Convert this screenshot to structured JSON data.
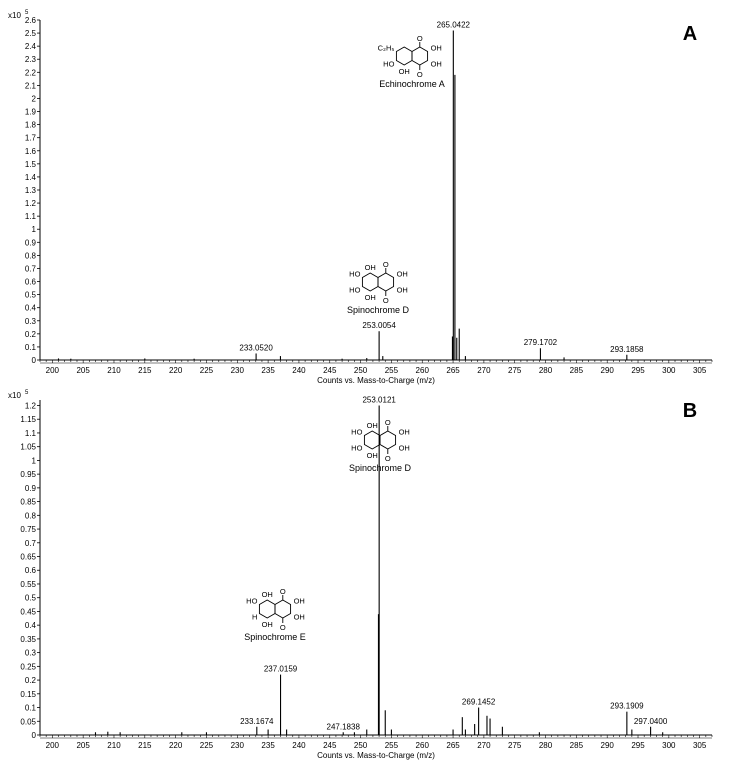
{
  "chart_data": [
    {
      "type": "bar",
      "panel_label": "A",
      "scale_prefix": "x10",
      "scale_exp": "5",
      "xlabel": "Counts vs. Mass-to-Charge (m/z)",
      "xlim": [
        198,
        307
      ],
      "ylim": [
        0,
        2.6
      ],
      "xticks": [
        200,
        205,
        210,
        215,
        220,
        225,
        230,
        235,
        240,
        245,
        250,
        255,
        260,
        265,
        270,
        275,
        280,
        285,
        290,
        295,
        300,
        305
      ],
      "yticks": [
        "0",
        "0.1",
        "0.2",
        "0.3",
        "0.4",
        "0.5",
        "0.6",
        "0.7",
        "0.8",
        "0.9",
        "1",
        "1.1",
        "1.2",
        "1.3",
        "1.4",
        "1.5",
        "1.6",
        "1.7",
        "1.8",
        "1.9",
        "2",
        "2.1",
        "2.2",
        "2.3",
        "2.4",
        "2.5",
        "2.6"
      ],
      "peaks": [
        {
          "x": 201.0,
          "y": 0.012
        },
        {
          "x": 203.0,
          "y": 0.01
        },
        {
          "x": 215.0,
          "y": 0.012
        },
        {
          "x": 223.0,
          "y": 0.01
        },
        {
          "x": 233.052,
          "y": 0.05
        },
        {
          "x": 237.0,
          "y": 0.03
        },
        {
          "x": 247.0,
          "y": 0.01
        },
        {
          "x": 251.0,
          "y": 0.015
        },
        {
          "x": 253.0054,
          "y": 0.22
        },
        {
          "x": 253.6,
          "y": 0.03
        },
        {
          "x": 264.9,
          "y": 0.18
        },
        {
          "x": 265.0422,
          "y": 2.52
        },
        {
          "x": 265.3,
          "y": 2.18
        },
        {
          "x": 265.6,
          "y": 0.17
        },
        {
          "x": 266.0,
          "y": 0.24
        },
        {
          "x": 267.0,
          "y": 0.03
        },
        {
          "x": 279.1702,
          "y": 0.09
        },
        {
          "x": 283.0,
          "y": 0.02
        },
        {
          "x": 293.1858,
          "y": 0.04
        }
      ],
      "peak_labels": [
        {
          "x": 265.0422,
          "y": 2.52,
          "text": "265.0422"
        },
        {
          "x": 253.0054,
          "y": 0.22,
          "text": "253.0054"
        },
        {
          "x": 233.052,
          "y": 0.05,
          "text": "233.0520"
        },
        {
          "x": 279.1702,
          "y": 0.09,
          "text": "279.1702"
        },
        {
          "x": 293.1858,
          "y": 0.04,
          "text": "293.1858"
        }
      ],
      "structures": [
        {
          "name": "Echinochrome A",
          "r1": "C₂H₅",
          "r2": "HO",
          "show_top_oh": false
        },
        {
          "name": "Spinochrome D",
          "r1": "HO",
          "r2": "HO",
          "show_top_oh": true
        }
      ]
    },
    {
      "type": "bar",
      "panel_label": "B",
      "scale_prefix": "x10",
      "scale_exp": "5",
      "xlabel": "Counts vs. Mass-to-Charge (m/z)",
      "xlim": [
        198,
        307
      ],
      "ylim": [
        0,
        1.22
      ],
      "xticks": [
        200,
        205,
        210,
        215,
        220,
        225,
        230,
        235,
        240,
        245,
        250,
        255,
        260,
        265,
        270,
        275,
        280,
        285,
        290,
        295,
        300,
        305
      ],
      "yticks": [
        "0",
        "0.05",
        "0.1",
        "0.15",
        "0.2",
        "0.25",
        "0.3",
        "0.35",
        "0.4",
        "0.45",
        "0.5",
        "0.55",
        "0.6",
        "0.65",
        "0.7",
        "0.75",
        "0.8",
        "0.85",
        "0.9",
        "0.95",
        "1",
        "1.05",
        "1.1",
        "1.15",
        "1.2"
      ],
      "peaks": [
        {
          "x": 207.0,
          "y": 0.01
        },
        {
          "x": 209.0,
          "y": 0.012
        },
        {
          "x": 211.0,
          "y": 0.01
        },
        {
          "x": 221.0,
          "y": 0.01
        },
        {
          "x": 225.0,
          "y": 0.01
        },
        {
          "x": 233.1674,
          "y": 0.03
        },
        {
          "x": 235.0,
          "y": 0.02
        },
        {
          "x": 237.0159,
          "y": 0.22
        },
        {
          "x": 238.0,
          "y": 0.02
        },
        {
          "x": 247.1838,
          "y": 0.01
        },
        {
          "x": 249.0,
          "y": 0.01
        },
        {
          "x": 251.0,
          "y": 0.02
        },
        {
          "x": 253.0121,
          "y": 1.2
        },
        {
          "x": 252.9,
          "y": 0.44
        },
        {
          "x": 254.0,
          "y": 0.09
        },
        {
          "x": 255.0,
          "y": 0.02
        },
        {
          "x": 265.0,
          "y": 0.02
        },
        {
          "x": 266.5,
          "y": 0.065
        },
        {
          "x": 267.0,
          "y": 0.02
        },
        {
          "x": 268.5,
          "y": 0.04
        },
        {
          "x": 269.1452,
          "y": 0.1
        },
        {
          "x": 270.5,
          "y": 0.07
        },
        {
          "x": 271.0,
          "y": 0.06
        },
        {
          "x": 273.0,
          "y": 0.03
        },
        {
          "x": 279.0,
          "y": 0.01
        },
        {
          "x": 293.1909,
          "y": 0.085
        },
        {
          "x": 294.0,
          "y": 0.02
        },
        {
          "x": 297.04,
          "y": 0.03
        },
        {
          "x": 299.0,
          "y": 0.01
        }
      ],
      "peak_labels": [
        {
          "x": 253.0121,
          "y": 1.2,
          "text": "253.0121"
        },
        {
          "x": 237.0159,
          "y": 0.22,
          "text": "237.0159"
        },
        {
          "x": 233.1674,
          "y": 0.03,
          "text": "233.1674"
        },
        {
          "x": 247.1838,
          "y": 0.01,
          "text": "247.1838"
        },
        {
          "x": 269.1452,
          "y": 0.1,
          "text": "269.1452"
        },
        {
          "x": 293.1909,
          "y": 0.085,
          "text": "293.1909"
        },
        {
          "x": 297.04,
          "y": 0.03,
          "text": "297.0400"
        }
      ],
      "structures": [
        {
          "name": "Spinochrome D",
          "r1": "HO",
          "r2": "HO",
          "show_top_oh": true
        },
        {
          "name": "Spinochrome E",
          "r1": "HO",
          "r2": "H",
          "show_top_oh": true
        }
      ]
    }
  ]
}
